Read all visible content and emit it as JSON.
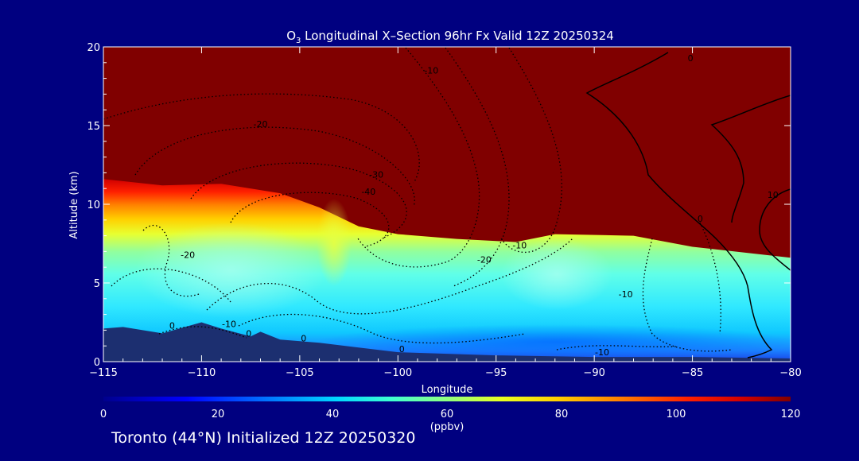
{
  "figure": {
    "title_main": "O",
    "title_sub": "3",
    "title_rest": " Longitudinal X–Section 96hr  Fx Valid 12Z 20250324",
    "caption": "Toronto (44°N) Initialized 12Z 20250320"
  },
  "colors": {
    "background": "#000080",
    "stratosphere": "#800000",
    "axes": "#ffffff"
  },
  "chart_data": {
    "type": "heatmap",
    "variable": "O3",
    "xlabel": "Longitude",
    "ylabel": "Altitude (km)",
    "xlim": [
      -115,
      -80
    ],
    "ylim": [
      0,
      20
    ],
    "xticks": [
      -115,
      -110,
      -105,
      -100,
      -95,
      -90,
      -85,
      -80
    ],
    "xtick_labels": [
      "−115",
      "−110",
      "−105",
      "−100",
      "−95",
      "−90",
      "−85",
      "−80"
    ],
    "yticks": [
      0,
      5,
      10,
      15,
      20
    ],
    "colorbar": {
      "label": "(ppbv)",
      "range": [
        0,
        120
      ],
      "ticks": [
        0,
        20,
        40,
        60,
        80,
        100,
        120
      ]
    },
    "tropopause_height_km": [
      {
        "lon": -115,
        "alt": 11.6
      },
      {
        "lon": -112,
        "alt": 11.2
      },
      {
        "lon": -109,
        "alt": 11.3
      },
      {
        "lon": -106,
        "alt": 10.7
      },
      {
        "lon": -104,
        "alt": 9.8
      },
      {
        "lon": -102,
        "alt": 8.6
      },
      {
        "lon": -100,
        "alt": 8.1
      },
      {
        "lon": -97,
        "alt": 7.8
      },
      {
        "lon": -94,
        "alt": 7.6
      },
      {
        "lon": -92,
        "alt": 8.1
      },
      {
        "lon": -88,
        "alt": 8.0
      },
      {
        "lon": -85,
        "alt": 7.3
      },
      {
        "lon": -80,
        "alt": 6.6
      }
    ],
    "terrain_km": [
      {
        "lon": -115,
        "alt": 2.1
      },
      {
        "lon": -114,
        "alt": 2.2
      },
      {
        "lon": -112,
        "alt": 1.8
      },
      {
        "lon": -110,
        "alt": 2.5
      },
      {
        "lon": -109,
        "alt": 2.1
      },
      {
        "lon": -107.5,
        "alt": 1.6
      },
      {
        "lon": -107,
        "alt": 1.9
      },
      {
        "lon": -106,
        "alt": 1.4
      },
      {
        "lon": -104,
        "alt": 1.2
      },
      {
        "lon": -102,
        "alt": 0.9
      },
      {
        "lon": -100,
        "alt": 0.6
      },
      {
        "lon": -95,
        "alt": 0.4
      },
      {
        "lon": -90,
        "alt": 0.3
      },
      {
        "lon": -85,
        "alt": 0.3
      },
      {
        "lon": -80,
        "alt": 0.2
      }
    ],
    "contour_labels": [
      {
        "text": "-10",
        "lon": -98.3,
        "alt": 18.3
      },
      {
        "text": "0",
        "lon": -85.1,
        "alt": 19.1
      },
      {
        "text": "-20",
        "lon": -107,
        "alt": 14.9
      },
      {
        "text": "-30",
        "lon": -101.1,
        "alt": 11.7
      },
      {
        "text": "-40",
        "lon": -101.5,
        "alt": 10.6
      },
      {
        "text": "-20",
        "lon": -110.7,
        "alt": 6.6
      },
      {
        "text": "-20",
        "lon": -95.6,
        "alt": 6.3
      },
      {
        "text": "-10",
        "lon": -93.8,
        "alt": 7.2
      },
      {
        "text": "-10",
        "lon": -88.4,
        "alt": 4.1
      },
      {
        "text": "-10",
        "lon": -108.6,
        "alt": 2.2
      },
      {
        "text": "0",
        "lon": -111.5,
        "alt": 2.1
      },
      {
        "text": "0",
        "lon": -107.6,
        "alt": 1.6
      },
      {
        "text": "0",
        "lon": -104.8,
        "alt": 1.3
      },
      {
        "text": "0",
        "lon": -99.8,
        "alt": 0.6
      },
      {
        "text": "-10",
        "lon": -89.6,
        "alt": 0.4
      },
      {
        "text": "0",
        "lon": -84.6,
        "alt": 8.9
      },
      {
        "text": "10",
        "lon": -80.9,
        "alt": 10.4
      }
    ]
  }
}
